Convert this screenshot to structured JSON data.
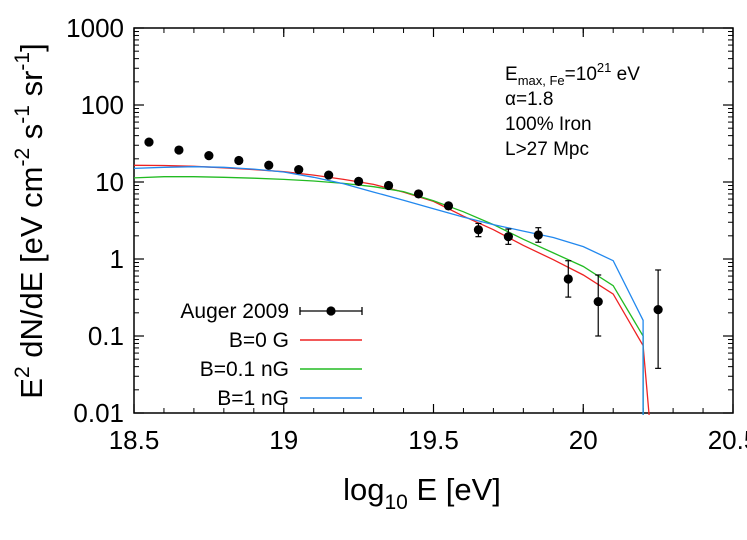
{
  "chart_data": {
    "type": "line",
    "xlabel": {
      "base": "log",
      "sub": "10",
      "rest": " E [eV]"
    },
    "ylabel": {
      "parts": [
        {
          "t": "E",
          "s": "normal"
        },
        {
          "t": "2",
          "s": "sup"
        },
        {
          "t": " dN/dE [eV cm",
          "s": "normal"
        },
        {
          "t": "-2",
          "s": "sup"
        },
        {
          "t": " s",
          "s": "normal"
        },
        {
          "t": "-1",
          "s": "sup"
        },
        {
          "t": " sr",
          "s": "normal"
        },
        {
          "t": "-1",
          "s": "sup"
        },
        {
          "t": "]",
          "s": "normal"
        }
      ]
    },
    "xlim": [
      18.5,
      20.5
    ],
    "ylim": [
      0.01,
      1000
    ],
    "y_scale": "log",
    "grid": false,
    "legend_position": "bottom-left",
    "x_ticks": [
      {
        "v": 18.5,
        "label": "18.5"
      },
      {
        "v": 19,
        "label": "19"
      },
      {
        "v": 19.5,
        "label": "19.5"
      },
      {
        "v": 20,
        "label": "20"
      },
      {
        "v": 20.5,
        "label": "20.5"
      }
    ],
    "y_ticks": [
      {
        "v": 0.01,
        "label": "0.01"
      },
      {
        "v": 0.1,
        "label": "0.1"
      },
      {
        "v": 1,
        "label": "1"
      },
      {
        "v": 10,
        "label": "10"
      },
      {
        "v": 100,
        "label": "100"
      },
      {
        "v": 1000,
        "label": "1000"
      }
    ],
    "annotation_lines": [
      [
        {
          "t": "E",
          "s": "normal"
        },
        {
          "t": "max, Fe",
          "s": "sub"
        },
        {
          "t": "=10",
          "s": "normal"
        },
        {
          "t": "21",
          "s": "sup"
        },
        {
          "t": " eV",
          "s": "normal"
        }
      ],
      [
        {
          "t": "α=1.8",
          "s": "normal"
        }
      ],
      [
        {
          "t": "100% Iron",
          "s": "normal"
        }
      ],
      [
        {
          "t": "L>27 Mpc",
          "s": "normal"
        }
      ]
    ],
    "points_series": {
      "name": "Auger 2009",
      "color": "#000000",
      "points": [
        {
          "x": 18.55,
          "y": 33
        },
        {
          "x": 18.65,
          "y": 26
        },
        {
          "x": 18.75,
          "y": 22
        },
        {
          "x": 18.85,
          "y": 19
        },
        {
          "x": 18.95,
          "y": 16.5
        },
        {
          "x": 19.05,
          "y": 14.5
        },
        {
          "x": 19.15,
          "y": 12.3
        },
        {
          "x": 19.25,
          "y": 10.2
        },
        {
          "x": 19.35,
          "y": 9.0
        },
        {
          "x": 19.45,
          "y": 7.0
        },
        {
          "x": 19.55,
          "y": 4.9
        },
        {
          "x": 19.65,
          "y": 2.4,
          "ylo": 1.95,
          "yhi": 2.9
        },
        {
          "x": 19.75,
          "y": 1.95,
          "ylo": 1.55,
          "yhi": 2.45
        },
        {
          "x": 19.85,
          "y": 2.05,
          "ylo": 1.65,
          "yhi": 2.55
        },
        {
          "x": 19.95,
          "y": 0.55,
          "ylo": 0.32,
          "yhi": 0.95
        },
        {
          "x": 20.05,
          "y": 0.28,
          "ylo": 0.1,
          "yhi": 0.62
        },
        {
          "x": 20.25,
          "y": 0.22,
          "ylo": 0.038,
          "yhi": 0.72
        }
      ]
    },
    "series": [
      {
        "name": "B=0 G",
        "color": "#ee2222",
        "x": [
          18.5,
          18.6,
          18.7,
          18.8,
          18.9,
          19.0,
          19.1,
          19.2,
          19.3,
          19.4,
          19.5,
          19.6,
          19.7,
          19.8,
          19.9,
          20.0,
          20.1,
          20.2,
          20.22
        ],
        "y": [
          16.5,
          16.4,
          16.0,
          15.3,
          14.5,
          13.6,
          12.3,
          10.8,
          9.3,
          7.4,
          5.6,
          3.6,
          2.4,
          1.5,
          0.98,
          0.62,
          0.35,
          0.075,
          0.008
        ]
      },
      {
        "name": "B=0.1 nG",
        "color": "#22bb22",
        "x": [
          18.5,
          18.6,
          18.7,
          18.8,
          18.9,
          19.0,
          19.1,
          19.2,
          19.3,
          19.4,
          19.5,
          19.6,
          19.7,
          19.8,
          19.9,
          20.0,
          20.1,
          20.2,
          20.2
        ],
        "y": [
          11.3,
          11.7,
          11.7,
          11.5,
          11.2,
          10.8,
          10.3,
          9.6,
          8.7,
          7.5,
          5.7,
          4.1,
          2.8,
          1.8,
          1.2,
          0.8,
          0.45,
          0.1,
          0.008
        ]
      },
      {
        "name": "B=1 nG",
        "color": "#2288ee",
        "x": [
          18.5,
          18.6,
          18.7,
          18.8,
          18.9,
          19.0,
          19.1,
          19.2,
          19.3,
          19.4,
          19.5,
          19.6,
          19.7,
          19.8,
          19.9,
          20.0,
          20.1,
          20.2,
          20.2
        ],
        "y": [
          15.0,
          15.5,
          15.8,
          15.5,
          14.7,
          13.5,
          11.5,
          9.5,
          7.4,
          5.8,
          4.5,
          3.5,
          2.8,
          2.3,
          1.9,
          1.45,
          0.95,
          0.16,
          0.008
        ]
      }
    ]
  }
}
